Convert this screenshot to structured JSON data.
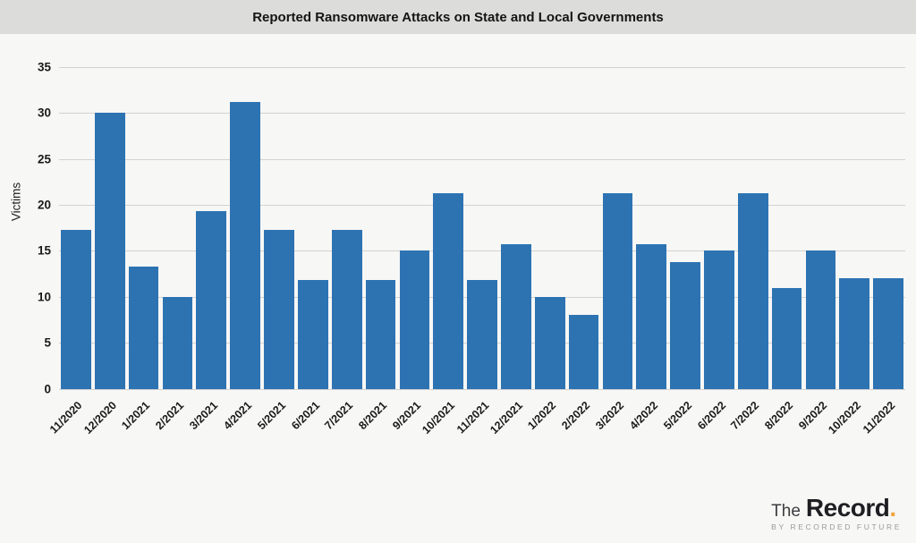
{
  "header": {
    "title": "Reported Ransomware Attacks on State and Local Governments"
  },
  "chart_data": {
    "type": "bar",
    "title": "Reported Ransomware Attacks on State and Local Governments",
    "xlabel": "",
    "ylabel": "Victims",
    "ylim": [
      0,
      35
    ],
    "yticks": [
      0,
      5,
      10,
      15,
      20,
      25,
      30,
      35
    ],
    "grid": "horizontal",
    "legend": "none",
    "bar_color": "#2d73b2",
    "categories": [
      "11/2020",
      "12/2020",
      "1/2021",
      "2/2021",
      "3/2021",
      "4/2021",
      "5/2021",
      "6/2021",
      "7/2021",
      "8/2021",
      "9/2021",
      "10/2021",
      "11/2021",
      "12/2021",
      "1/2022",
      "2/2022",
      "3/2022",
      "4/2022",
      "5/2022",
      "6/2022",
      "7/2022",
      "8/2022",
      "9/2022",
      "10/2022",
      "11/2022"
    ],
    "values": [
      17.3,
      30,
      13.3,
      10,
      19.3,
      31.2,
      17.3,
      11.8,
      17.3,
      11.8,
      15,
      21.3,
      11.8,
      15.7,
      10,
      8,
      21.3,
      15.7,
      13.8,
      15,
      21.3,
      11,
      15,
      12,
      12
    ]
  },
  "footer": {
    "logo_the": "The",
    "logo_record": "Record",
    "logo_dot": ".",
    "tagline": "BY RECORDED FUTURE"
  },
  "colors": {
    "header_bg": "#dcdcdb",
    "page_bg": "#f7f7f6",
    "bar": "#2d73b2",
    "gridline": "#d2d2d1",
    "text": "#1a1a1a",
    "logo_accent": "#f2a33c",
    "tagline_text": "#9a9a99"
  }
}
